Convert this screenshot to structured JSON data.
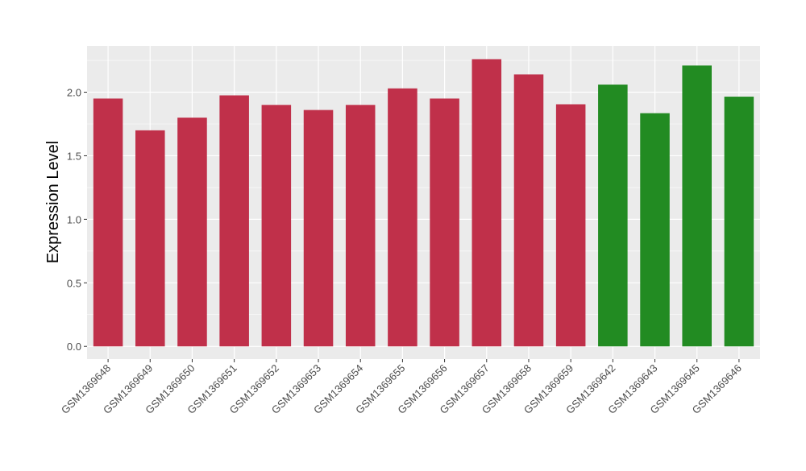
{
  "chart_data": {
    "type": "bar",
    "ylabel": "Expression Level",
    "xlabel": "",
    "ylim": [
      -0.1,
      2.3645
    ],
    "yticks": [
      0.0,
      0.5,
      1.0,
      1.5,
      2.0
    ],
    "ytick_labels": [
      "0.0",
      "0.5",
      "1.0",
      "1.5",
      "2.0"
    ],
    "grid": true,
    "panel_background": "#ebebeb",
    "categories": [
      "GSM1369648",
      "GSM1369649",
      "GSM1369650",
      "GSM1369651",
      "GSM1369652",
      "GSM1369653",
      "GSM1369654",
      "GSM1369655",
      "GSM1369656",
      "GSM1369657",
      "GSM1369658",
      "GSM1369659",
      "GSM1369642",
      "GSM1369643",
      "GSM1369645",
      "GSM1369646"
    ],
    "values": [
      1.95,
      1.7,
      1.8,
      1.975,
      1.9,
      1.86,
      1.9,
      2.03,
      1.95,
      2.26,
      2.14,
      1.905,
      2.06,
      1.835,
      2.21,
      1.965
    ],
    "bar_colors": [
      "#c0304a",
      "#c0304a",
      "#c0304a",
      "#c0304a",
      "#c0304a",
      "#c0304a",
      "#c0304a",
      "#c0304a",
      "#c0304a",
      "#c0304a",
      "#c0304a",
      "#c0304a",
      "#228b22",
      "#228b22",
      "#228b22",
      "#228b22"
    ]
  }
}
